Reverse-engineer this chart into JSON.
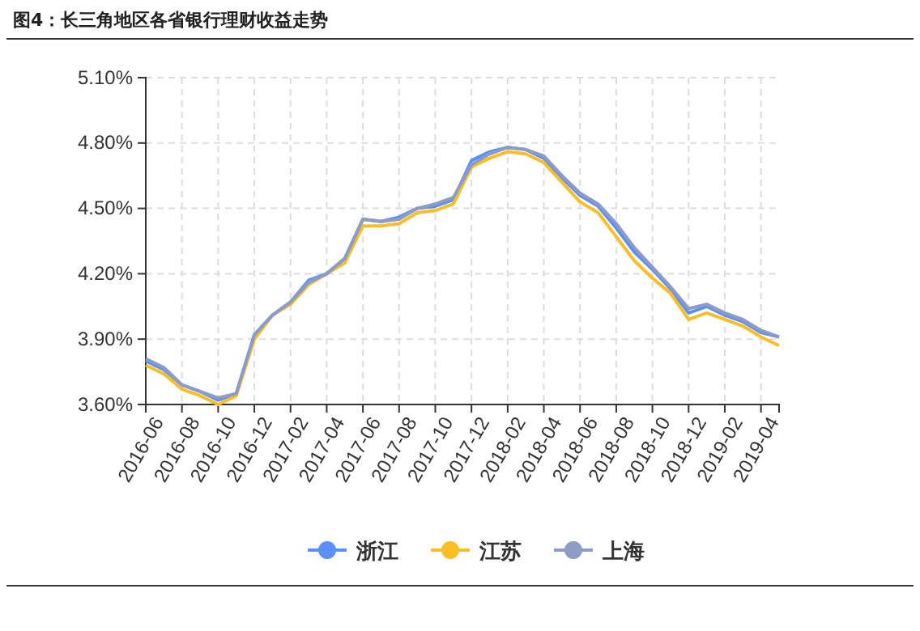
{
  "chart_data": {
    "type": "line",
    "title": "图4：长三角地区各省银行理财收益走势",
    "categories": [
      "2016-06",
      null,
      "2016-08",
      null,
      "2016-10",
      null,
      "2016-12",
      null,
      "2017-02",
      null,
      "2017-04",
      null,
      "2017-06",
      null,
      "2017-08",
      null,
      "2017-10",
      null,
      "2017-12",
      null,
      "2018-02",
      null,
      "2018-04",
      null,
      "2018-06",
      null,
      "2018-08",
      null,
      "2018-10",
      null,
      "2018-12",
      null,
      "2019-02",
      null,
      "2019-04",
      null
    ],
    "series": [
      {
        "name": "浙江",
        "color": "#5b8ff9",
        "values": [
          3.8,
          3.76,
          3.69,
          3.66,
          3.62,
          3.65,
          3.92,
          4.01,
          4.07,
          4.17,
          4.2,
          4.27,
          4.45,
          4.44,
          4.46,
          4.5,
          4.51,
          4.54,
          4.72,
          4.76,
          4.78,
          4.77,
          4.73,
          4.64,
          4.56,
          4.51,
          4.41,
          4.3,
          4.22,
          4.13,
          4.02,
          4.05,
          4.01,
          3.98,
          3.93,
          3.91
        ]
      },
      {
        "name": "江苏",
        "color": "#fbbf25",
        "values": [
          3.78,
          3.74,
          3.67,
          3.64,
          3.6,
          3.64,
          3.9,
          4.01,
          4.06,
          4.15,
          4.2,
          4.25,
          4.42,
          4.42,
          4.43,
          4.48,
          4.49,
          4.52,
          4.69,
          4.73,
          4.76,
          4.75,
          4.71,
          4.62,
          4.53,
          4.48,
          4.37,
          4.26,
          4.18,
          4.11,
          3.99,
          4.02,
          3.99,
          3.96,
          3.91,
          3.87
        ]
      },
      {
        "name": "上海",
        "color": "#8c9cc6",
        "values": [
          3.81,
          3.77,
          3.69,
          3.66,
          3.63,
          3.65,
          3.92,
          4.01,
          4.07,
          4.16,
          4.2,
          4.27,
          4.45,
          4.44,
          4.45,
          4.5,
          4.52,
          4.55,
          4.7,
          4.75,
          4.78,
          4.77,
          4.74,
          4.65,
          4.57,
          4.52,
          4.43,
          4.32,
          4.23,
          4.14,
          4.04,
          4.06,
          4.02,
          3.99,
          3.94,
          3.91
        ]
      }
    ],
    "ylim": [
      3.6,
      5.1
    ],
    "yticks": [
      {
        "value": 3.6,
        "label": "3.60%"
      },
      {
        "value": 3.9,
        "label": "3.90%"
      },
      {
        "value": 4.2,
        "label": "4.20%"
      },
      {
        "value": 4.5,
        "label": "4.50%"
      },
      {
        "value": 4.8,
        "label": "4.80%"
      },
      {
        "value": 5.1,
        "label": "5.10%"
      }
    ],
    "grid": true,
    "legend": "bottom",
    "marker": "none",
    "line_style": "solid"
  }
}
